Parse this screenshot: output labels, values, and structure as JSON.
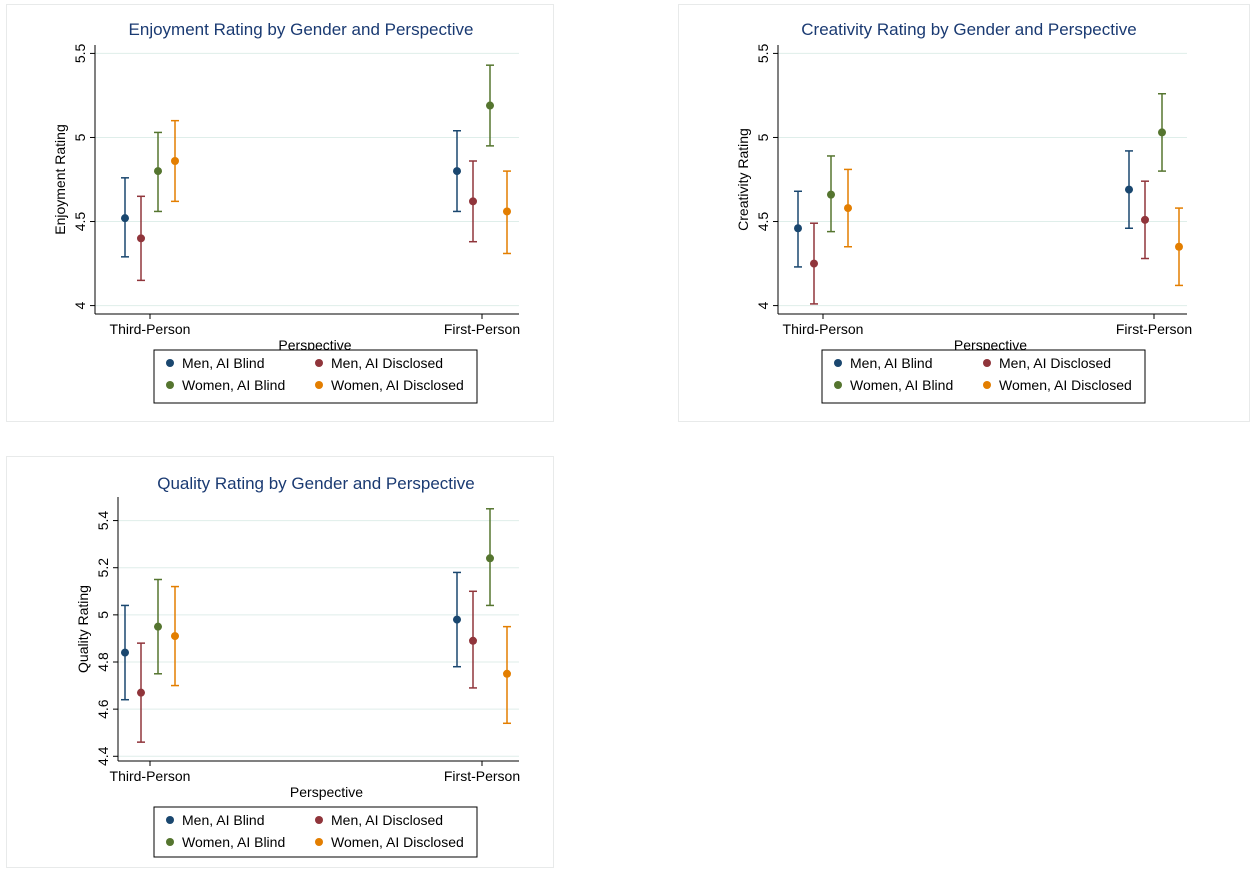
{
  "chart_data": [
    {
      "type": "scatter",
      "title": "Enjoyment Rating by Gender and Perspective",
      "xlabel": "Perspective",
      "ylabel": "Enjoyment Rating",
      "categories": [
        "Third-Person",
        "First-Person"
      ],
      "ylim": [
        3.95,
        5.55
      ],
      "yticks": [
        4,
        4.5,
        5,
        5.5
      ],
      "ytick_labels": [
        "4",
        "4.5",
        "5",
        "5.5"
      ],
      "grid": true,
      "legend_position": "bottom",
      "series": [
        {
          "name": "Men, AI Blind",
          "values": [
            4.52,
            4.8
          ],
          "lower": [
            4.29,
            4.56
          ],
          "upper": [
            4.76,
            5.04
          ]
        },
        {
          "name": "Men, AI Disclosed",
          "values": [
            4.4,
            4.62
          ],
          "lower": [
            4.15,
            4.38
          ],
          "upper": [
            4.65,
            4.86
          ]
        },
        {
          "name": "Women, AI Blind",
          "values": [
            4.8,
            5.19
          ],
          "lower": [
            4.56,
            4.95
          ],
          "upper": [
            5.03,
            5.43
          ]
        },
        {
          "name": "Women, AI Disclosed",
          "values": [
            4.86,
            4.56
          ],
          "lower": [
            4.62,
            4.31
          ],
          "upper": [
            5.1,
            4.8
          ]
        }
      ]
    },
    {
      "type": "scatter",
      "title": "Creativity Rating by Gender and Perspective",
      "xlabel": "Perspective",
      "ylabel": "Creativity Rating",
      "categories": [
        "Third-Person",
        "First-Person"
      ],
      "ylim": [
        3.95,
        5.55
      ],
      "yticks": [
        4,
        4.5,
        5,
        5.5
      ],
      "ytick_labels": [
        "4",
        "4.5",
        "5",
        "5.5"
      ],
      "grid": true,
      "legend_position": "bottom",
      "series": [
        {
          "name": "Men, AI Blind",
          "values": [
            4.46,
            4.69
          ],
          "lower": [
            4.23,
            4.46
          ],
          "upper": [
            4.68,
            4.92
          ]
        },
        {
          "name": "Men, AI Disclosed",
          "values": [
            4.25,
            4.51
          ],
          "lower": [
            4.01,
            4.28
          ],
          "upper": [
            4.49,
            4.74
          ]
        },
        {
          "name": "Women, AI Blind",
          "values": [
            4.66,
            5.03
          ],
          "lower": [
            4.44,
            4.8
          ],
          "upper": [
            4.89,
            5.26
          ]
        },
        {
          "name": "Women, AI Disclosed",
          "values": [
            4.58,
            4.35
          ],
          "lower": [
            4.35,
            4.12
          ],
          "upper": [
            4.81,
            4.58
          ]
        }
      ]
    },
    {
      "type": "scatter",
      "title": "Quality Rating by Gender and Perspective",
      "xlabel": "Perspective",
      "ylabel": "Quality Rating",
      "categories": [
        "Third-Person",
        "First-Person"
      ],
      "ylim": [
        4.38,
        5.5
      ],
      "yticks": [
        4.4,
        4.6,
        4.8,
        5,
        5.2,
        5.4
      ],
      "ytick_labels": [
        "4.4",
        "4.6",
        "4.8",
        "5",
        "5.2",
        "5.4"
      ],
      "grid": true,
      "legend_position": "bottom",
      "series": [
        {
          "name": "Men, AI Blind",
          "values": [
            4.84,
            4.98
          ],
          "lower": [
            4.64,
            4.78
          ],
          "upper": [
            5.04,
            5.18
          ]
        },
        {
          "name": "Men, AI Disclosed",
          "values": [
            4.67,
            4.89
          ],
          "lower": [
            4.46,
            4.69
          ],
          "upper": [
            4.88,
            5.1
          ]
        },
        {
          "name": "Women, AI Blind",
          "values": [
            4.95,
            5.24
          ],
          "lower": [
            4.75,
            5.04
          ],
          "upper": [
            5.15,
            5.45
          ]
        },
        {
          "name": "Women, AI Disclosed",
          "values": [
            4.91,
            4.75
          ],
          "lower": [
            4.7,
            4.54
          ],
          "upper": [
            5.12,
            4.95
          ]
        }
      ]
    }
  ],
  "colors": {
    "series": [
      "#1a476f",
      "#90353b",
      "#55752f",
      "#e37e00"
    ],
    "grid": "#dfeeea",
    "title": "#1a3a72"
  }
}
